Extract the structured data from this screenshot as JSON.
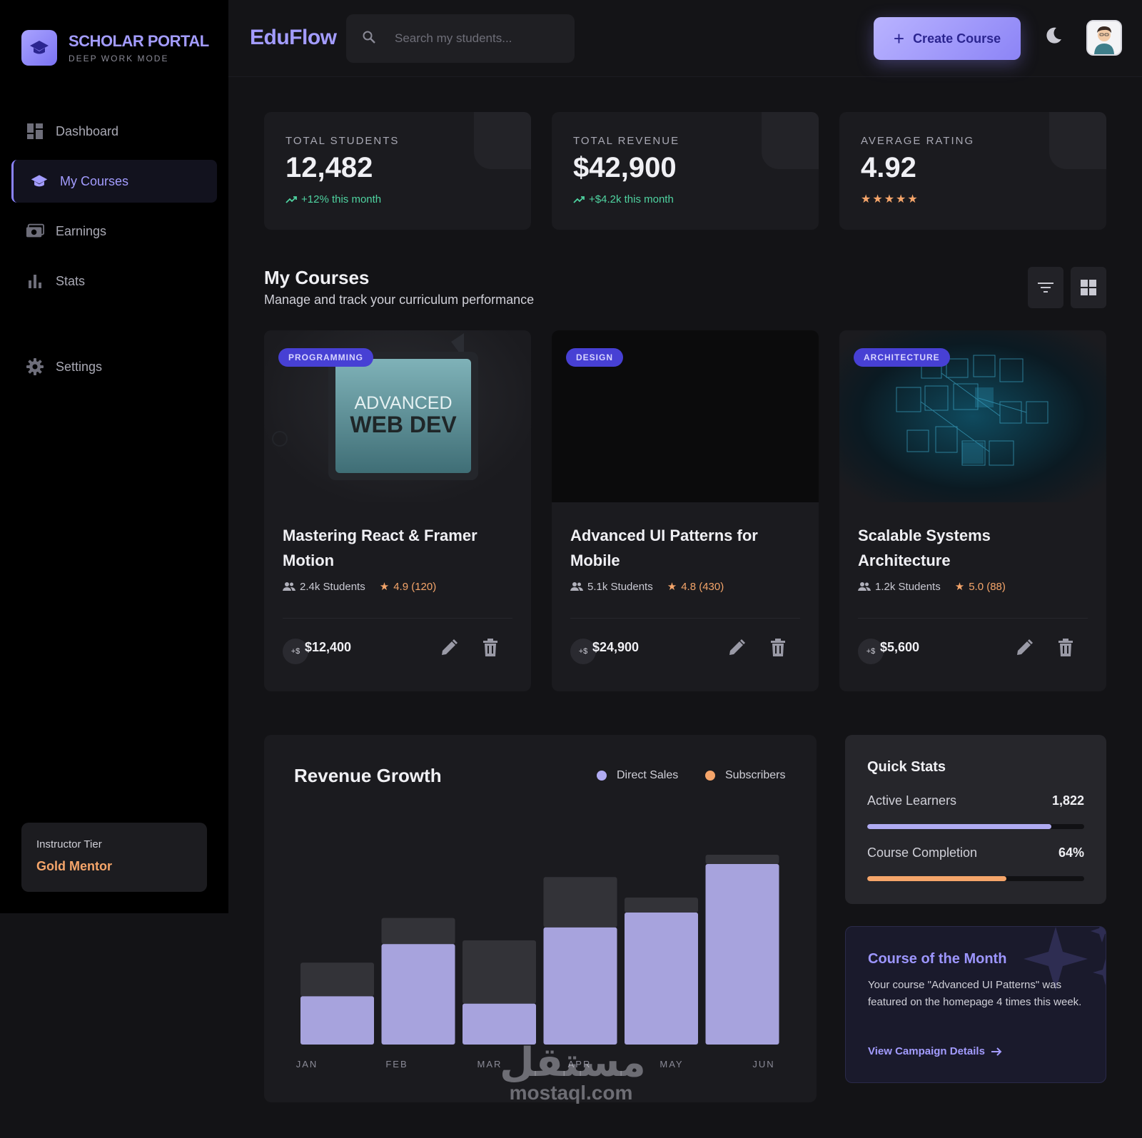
{
  "brand": {
    "title": "SCHOLAR PORTAL",
    "subtitle": "DEEP WORK MODE"
  },
  "sidebar": {
    "items": [
      {
        "label": "Dashboard",
        "icon": "dashboard-icon"
      },
      {
        "label": "My Courses",
        "icon": "graduation-cap-icon",
        "active": true
      },
      {
        "label": "Earnings",
        "icon": "money-icon"
      },
      {
        "label": "Stats",
        "icon": "bar-chart-icon"
      },
      {
        "label": "Settings",
        "icon": "gear-icon"
      }
    ],
    "tier": {
      "label": "Instructor Tier",
      "value": "Gold Mentor"
    }
  },
  "header": {
    "app_title": "EduFlow",
    "search_placeholder": "Search my students...",
    "create_button": "Create Course"
  },
  "stats": [
    {
      "label": "TOTAL STUDENTS",
      "value": "12,482",
      "trend": "+12% this month"
    },
    {
      "label": "TOTAL REVENUE",
      "value": "$42,900",
      "trend": "+$4.2k this month"
    },
    {
      "label": "AVERAGE RATING",
      "value": "4.92",
      "stars": "★★★★★"
    }
  ],
  "courses_section": {
    "title": "My Courses",
    "subtitle": "Manage and track your curriculum performance"
  },
  "courses": [
    {
      "badge": "PROGRAMMING",
      "title": "Mastering React & Framer Motion",
      "students": "2.4k Students",
      "rating": "4.9 (120)",
      "price_chip": "+$",
      "price": "$12,400",
      "thumb_line1": "ADVANCED",
      "thumb_line2": "WEB DEV"
    },
    {
      "badge": "DESIGN",
      "title": "Advanced UI Patterns for Mobile",
      "students": "5.1k Students",
      "rating": "4.8 (430)",
      "price_chip": "+$",
      "price": "$24,900"
    },
    {
      "badge": "ARCHITECTURE",
      "title": "Scalable Systems Architecture",
      "students": "1.2k Students",
      "rating": "5.0 (88)",
      "price_chip": "+$",
      "price": "$5,600"
    }
  ],
  "revenue_chart": {
    "title": "Revenue Growth",
    "legend": [
      "Direct Sales",
      "Subscribers"
    ]
  },
  "chart_data": {
    "type": "bar",
    "stacked": true,
    "title": "Revenue Growth",
    "categories": [
      "JAN",
      "FEB",
      "MAR",
      "APR",
      "MAY",
      "JUN"
    ],
    "series": [
      {
        "name": "Direct Sales",
        "values": [
          26,
          54,
          22,
          63,
          71,
          97
        ],
        "color": "#a7a3dd"
      },
      {
        "name": "Subscribers",
        "values": [
          18,
          14,
          34,
          27,
          8,
          5
        ],
        "color": "#333338"
      }
    ],
    "ylim": [
      0,
      102
    ],
    "grid": false,
    "legend_position": "top-right"
  },
  "quick_stats": {
    "title": "Quick Stats",
    "rows": [
      {
        "label": "Active Learners",
        "value": "1,822",
        "fill": 0.85,
        "color": "#b0abf2"
      },
      {
        "label": "Course Completion",
        "value": "64%",
        "fill": 0.64,
        "color": "#f5a56a"
      }
    ]
  },
  "course_of_month": {
    "title": "Course of the Month",
    "text": "Your course \"Advanced UI Patterns\" was featured on the homepage 4 times this week.",
    "link": "View Campaign Details"
  },
  "watermark": {
    "arabic": "مستقل",
    "latin": "mostaql.com"
  },
  "colors": {
    "accent": "#a39cff",
    "orange": "#f5a56a",
    "green": "#4fd3a0",
    "badge": "#4740d4"
  }
}
